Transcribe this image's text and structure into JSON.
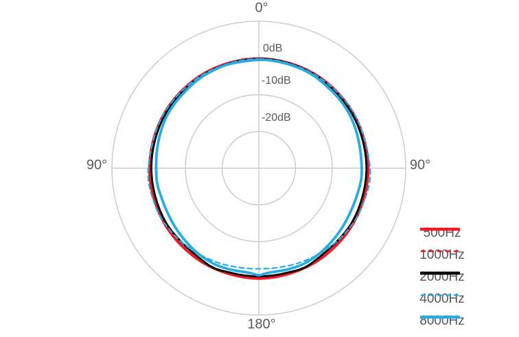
{
  "chart_data": {
    "type": "line",
    "subtype": "polar-pattern",
    "title": "",
    "angle_convention": "degrees from front (0° top), clockwise; chart is plotted on a circular polar grid",
    "radial_axis": {
      "unit": "dB",
      "rings_db": [
        0,
        -10,
        -20
      ],
      "ring_labels": [
        "0dB",
        "-10dB",
        "-20dB"
      ],
      "outer_border_ring": true,
      "grid": true
    },
    "angle_labels": [
      {
        "angle": 0,
        "label": "0°"
      },
      {
        "angle": 90,
        "label": "90°"
      },
      {
        "angle": 270,
        "label": "90°"
      },
      {
        "angle": 180,
        "label": "180°"
      }
    ],
    "legend_position": "right-bottom",
    "series": [
      {
        "name": "500Hz",
        "color": "#ed1c24",
        "dash": false,
        "width": 3.8,
        "points_deg_db": [
          [
            0,
            -0.15
          ],
          [
            30,
            -0.2
          ],
          [
            60,
            -0.25
          ],
          [
            90,
            -0.2
          ],
          [
            120,
            -0.2
          ],
          [
            150,
            -0.1
          ],
          [
            180,
            0.05
          ],
          [
            210,
            -0.1
          ],
          [
            240,
            -0.2
          ],
          [
            270,
            -0.25
          ],
          [
            300,
            -0.25
          ],
          [
            330,
            -0.2
          ]
        ]
      },
      {
        "name": "1000Hz",
        "color": "#ed1c24",
        "dash": true,
        "width": 2.2,
        "points_deg_db": [
          [
            0,
            -0.25
          ],
          [
            30,
            -0.35
          ],
          [
            60,
            -0.45
          ],
          [
            90,
            -0.4
          ],
          [
            120,
            -0.4
          ],
          [
            150,
            -0.3
          ],
          [
            180,
            -0.3
          ],
          [
            210,
            -0.3
          ],
          [
            240,
            -0.45
          ],
          [
            270,
            -0.5
          ],
          [
            300,
            -0.45
          ],
          [
            330,
            -0.35
          ]
        ]
      },
      {
        "name": "2000Hz",
        "color": "#000000",
        "dash": false,
        "width": 2.8,
        "points_deg_db": [
          [
            0,
            -0.2
          ],
          [
            30,
            -0.35
          ],
          [
            60,
            -0.6
          ],
          [
            90,
            -0.7
          ],
          [
            120,
            -0.65
          ],
          [
            150,
            -0.45
          ],
          [
            165,
            -0.5
          ],
          [
            180,
            -0.55
          ],
          [
            195,
            -0.5
          ],
          [
            210,
            -0.45
          ],
          [
            240,
            -0.7
          ],
          [
            270,
            -0.75
          ],
          [
            300,
            -0.6
          ],
          [
            330,
            -0.4
          ]
        ]
      },
      {
        "name": "4000Hz",
        "color": "#29abe2",
        "dash": true,
        "width": 2.2,
        "points_deg_db": [
          [
            0,
            -0.25
          ],
          [
            30,
            -0.35
          ],
          [
            60,
            -0.1
          ],
          [
            90,
            0.3
          ],
          [
            110,
            0.0
          ],
          [
            125,
            -0.5
          ],
          [
            140,
            -1.2
          ],
          [
            155,
            -1.9
          ],
          [
            168,
            -2.4
          ],
          [
            180,
            -2.6
          ],
          [
            192,
            -2.4
          ],
          [
            205,
            -1.9
          ],
          [
            220,
            -1.2
          ],
          [
            235,
            -0.5
          ],
          [
            250,
            0.0
          ],
          [
            270,
            0.1
          ],
          [
            300,
            -0.2
          ],
          [
            330,
            -0.35
          ]
        ]
      },
      {
        "name": "8000Hz",
        "color": "#29abe2",
        "dash": false,
        "width": 3.8,
        "points_deg_db": [
          [
            0,
            -0.5
          ],
          [
            10,
            -0.55
          ],
          [
            20,
            -0.6
          ],
          [
            30,
            -0.7
          ],
          [
            38,
            -1.0
          ],
          [
            48,
            -1.1
          ],
          [
            58,
            -1.25
          ],
          [
            68,
            -1.6
          ],
          [
            78,
            -1.9
          ],
          [
            88,
            -2.0
          ],
          [
            96,
            -1.95
          ],
          [
            105,
            -2.25
          ],
          [
            115,
            -2.35
          ],
          [
            125,
            -2.15
          ],
          [
            135,
            -1.85
          ],
          [
            145,
            -1.45
          ],
          [
            155,
            -1.2
          ],
          [
            163,
            -1.3
          ],
          [
            170,
            -1.45
          ],
          [
            176,
            -1.3
          ],
          [
            180,
            -0.85
          ],
          [
            184,
            -1.3
          ],
          [
            190,
            -1.45
          ],
          [
            197,
            -1.3
          ],
          [
            205,
            -1.2
          ],
          [
            215,
            -1.45
          ],
          [
            225,
            -1.85
          ],
          [
            235,
            -2.15
          ],
          [
            245,
            -2.35
          ],
          [
            255,
            -2.25
          ],
          [
            262,
            -2.0
          ],
          [
            270,
            -2.05
          ],
          [
            278,
            -1.9
          ],
          [
            288,
            -1.6
          ],
          [
            298,
            -1.25
          ],
          [
            308,
            -1.1
          ],
          [
            318,
            -1.0
          ],
          [
            326,
            -0.75
          ],
          [
            335,
            -0.65
          ],
          [
            345,
            -0.55
          ]
        ]
      }
    ]
  },
  "colors": {
    "grid": "#cccccc",
    "label_text": "#58595b",
    "background": "#ffffff",
    "red_series": "#ed1c24",
    "blue_series": "#29abe2",
    "black_series": "#000000"
  }
}
